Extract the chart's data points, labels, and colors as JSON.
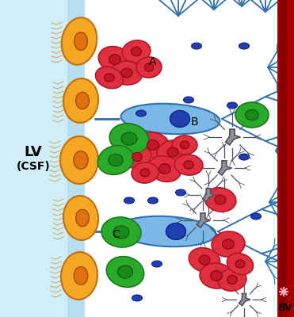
{
  "bg_color": "#ffffff",
  "csf_color": "#d0eef8",
  "lv_stripe_color": "#b8dff0",
  "ependymal_color": "#f5a623",
  "ependymal_nucleus_color": "#e07010",
  "astrocyte_body_color": "#7ab8e8",
  "astrocyte_outline": "#3070b0",
  "neuroblast_color": "#e03040",
  "neuroblast_nucleus_color": "#c01828",
  "microglia_color": "#909098",
  "microglia_outline": "#505060",
  "oligodendrocyte_color": "#2aaa2a",
  "oligodendrocyte_outline": "#1a7a1a",
  "nucleus_blue": "#2040b0",
  "blood_vessel_color": "#aa0000",
  "blood_vessel_stripe": "#880000",
  "label_A": "A",
  "label_B": "B",
  "label_C": "C",
  "label_LV": "LV",
  "label_CSF": "(CSF)",
  "label_BV": "BV",
  "figsize": [
    3.71,
    4.0
  ],
  "dpi": 100
}
